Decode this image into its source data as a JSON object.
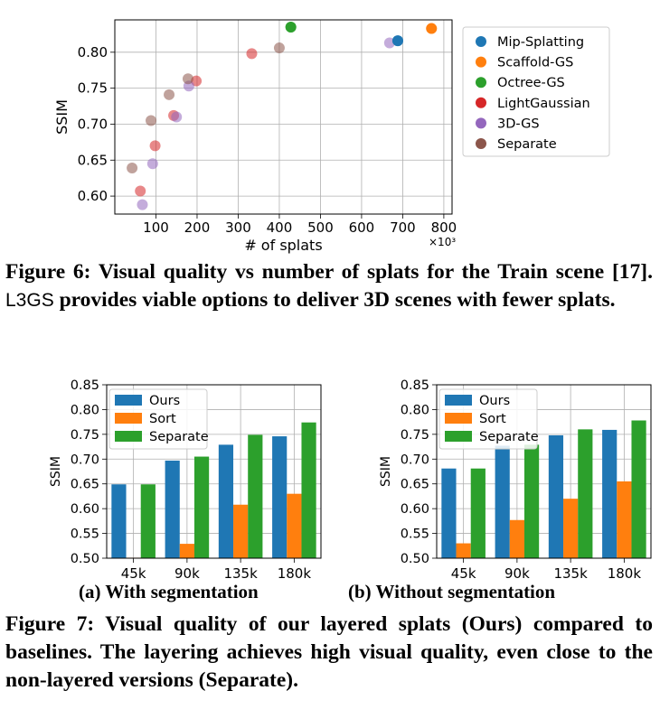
{
  "figure6": {
    "caption_prefix": "Figure 6: Visual quality vs number of splats for the Train scene [17]. ",
    "caption_name": "L3GS",
    "caption_suffix": " provides viable options to deliver 3D scenes with fewer splats."
  },
  "figure7": {
    "caption": "Figure 7: Visual quality of our layered splats (Ours) compared to baselines. The layering achieves high visual quality, even close to the non-layered versions (Separate).",
    "sub_a": "(a) With segmentation",
    "sub_b": "(b) Without segmentation"
  },
  "chart_data": [
    {
      "type": "scatter",
      "title": "",
      "xlabel": "# of splats",
      "x_multiplier_label": "×10³",
      "ylabel": "SSIM",
      "xlim": [
        0,
        820
      ],
      "ylim": [
        0.575,
        0.845
      ],
      "xticks": [
        100,
        200,
        300,
        400,
        500,
        600,
        700,
        800
      ],
      "yticks": [
        0.6,
        0.65,
        0.7,
        0.75,
        0.8
      ],
      "grid": true,
      "legend_position": "right-outside",
      "series": [
        {
          "name": "Mip-Splatting",
          "color": "#1f77b4",
          "points": [
            [
              688,
              0.816
            ]
          ]
        },
        {
          "name": "Scaffold-GS",
          "color": "#ff7f0e",
          "points": [
            [
              770,
              0.833
            ]
          ]
        },
        {
          "name": "Octree-GS",
          "color": "#2ca02c",
          "points": [
            [
              428,
              0.835
            ]
          ]
        },
        {
          "name": "LightGaussian",
          "color": "#d62728",
          "points": [
            [
              62,
              0.607
            ],
            [
              98,
              0.67
            ],
            [
              143,
              0.712
            ],
            [
              198,
              0.76
            ],
            [
              333,
              0.798
            ]
          ]
        },
        {
          "name": "3D-GS",
          "color": "#9467bd",
          "points": [
            [
              67,
              0.588
            ],
            [
              92,
              0.645
            ],
            [
              150,
              0.71
            ],
            [
              180,
              0.753
            ],
            [
              668,
              0.813
            ]
          ]
        },
        {
          "name": "Separate",
          "color": "#8c564b",
          "points": [
            [
              42,
              0.639
            ],
            [
              88,
              0.705
            ],
            [
              132,
              0.741
            ],
            [
              178,
              0.763
            ],
            [
              400,
              0.806
            ]
          ]
        }
      ]
    },
    {
      "type": "bar",
      "title": "",
      "xlabel": "",
      "ylabel": "SSIM",
      "ylim": [
        0.5,
        0.85
      ],
      "yticks": [
        "0.50",
        "0.55",
        "0.60",
        "0.65",
        "0.70",
        "0.75",
        "0.80",
        "0.85"
      ],
      "grid": true,
      "legend_position": "top-left",
      "categories": [
        "45k",
        "90k",
        "135k",
        "180k"
      ],
      "series": [
        {
          "name": "Ours",
          "color": "#1f77b4",
          "values": [
            0.649,
            0.697,
            0.729,
            0.746
          ]
        },
        {
          "name": "Sort",
          "color": "#ff7f0e",
          "values": [
            0.501,
            0.529,
            0.608,
            0.63
          ]
        },
        {
          "name": "Separate",
          "color": "#2ca02c",
          "values": [
            0.649,
            0.705,
            0.749,
            0.774
          ]
        }
      ]
    },
    {
      "type": "bar",
      "title": "",
      "xlabel": "",
      "ylabel": "SSIM",
      "ylim": [
        0.5,
        0.85
      ],
      "yticks": [
        "0.50",
        "0.55",
        "0.60",
        "0.65",
        "0.70",
        "0.75",
        "0.80",
        "0.85"
      ],
      "grid": true,
      "legend_position": "top-left",
      "categories": [
        "45k",
        "90k",
        "135k",
        "180k"
      ],
      "series": [
        {
          "name": "Ours",
          "color": "#1f77b4",
          "values": [
            0.681,
            0.727,
            0.748,
            0.759
          ]
        },
        {
          "name": "Sort",
          "color": "#ff7f0e",
          "values": [
            0.53,
            0.577,
            0.62,
            0.655
          ]
        },
        {
          "name": "Separate",
          "color": "#2ca02c",
          "values": [
            0.681,
            0.729,
            0.76,
            0.778
          ]
        }
      ]
    }
  ]
}
